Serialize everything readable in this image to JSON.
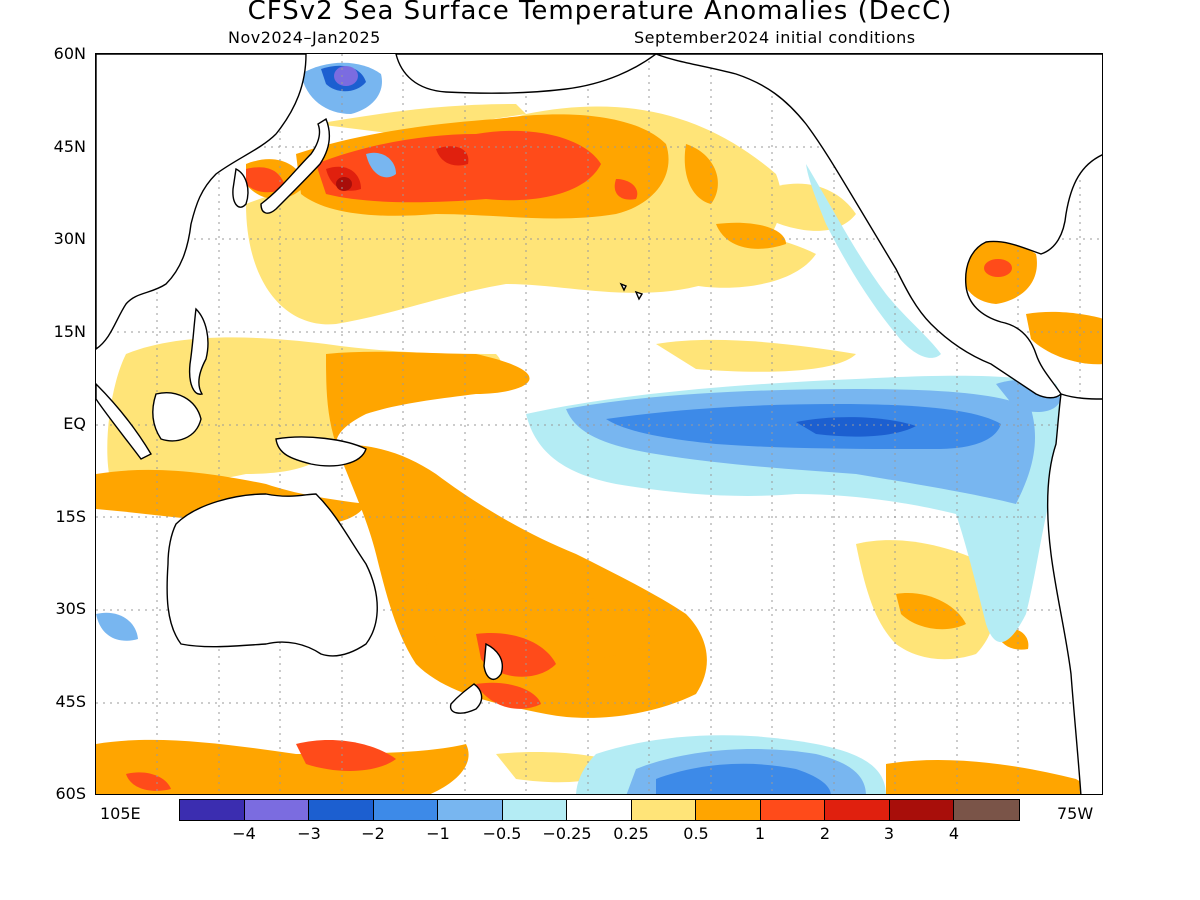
{
  "title": "CFSv2 Sea Surface Temperature Anomalies (DecC)",
  "subtitle_left": "Nov2024–Jan2025",
  "subtitle_right": "September2024 initial conditions",
  "lat_labels": [
    "60N",
    "45N",
    "30N",
    "15N",
    "EQ",
    "15S",
    "30S",
    "45S",
    "60S"
  ],
  "lon_labels": {
    "left": "105E",
    "right": "75W"
  },
  "colorbar": {
    "colors": [
      "#3b2db0",
      "#7b6ce0",
      "#1c5fd0",
      "#3d8ae8",
      "#78b6f0",
      "#b4ecf4",
      "#ffffff",
      "#ffe478",
      "#ffa500",
      "#ff4b1a",
      "#e0200e",
      "#a80e0a",
      "#7a5448"
    ],
    "ticks": [
      "−4",
      "−3",
      "−2",
      "−1",
      "−0.5",
      "−0.25",
      "0.25",
      "0.5",
      "1",
      "2",
      "3",
      "4"
    ]
  },
  "map": {
    "region": "Pacific Ocean, 60S–60N, 105E–75W",
    "anomaly_colors": {
      "strong_cool": "#1c5fd0",
      "moderate_cool": "#3d8ae8",
      "weak_cool": "#78b6f0",
      "slight_cool": "#b4ecf4",
      "slight_warm": "#ffe478",
      "warm": "#ffa500",
      "strong_warm": "#ff4b1a",
      "very_strong_warm": "#e0200e",
      "extreme_warm": "#a80e0a",
      "purple": "#7b6ce0",
      "coast": "#000000",
      "grid": "#9a9a9a"
    }
  }
}
